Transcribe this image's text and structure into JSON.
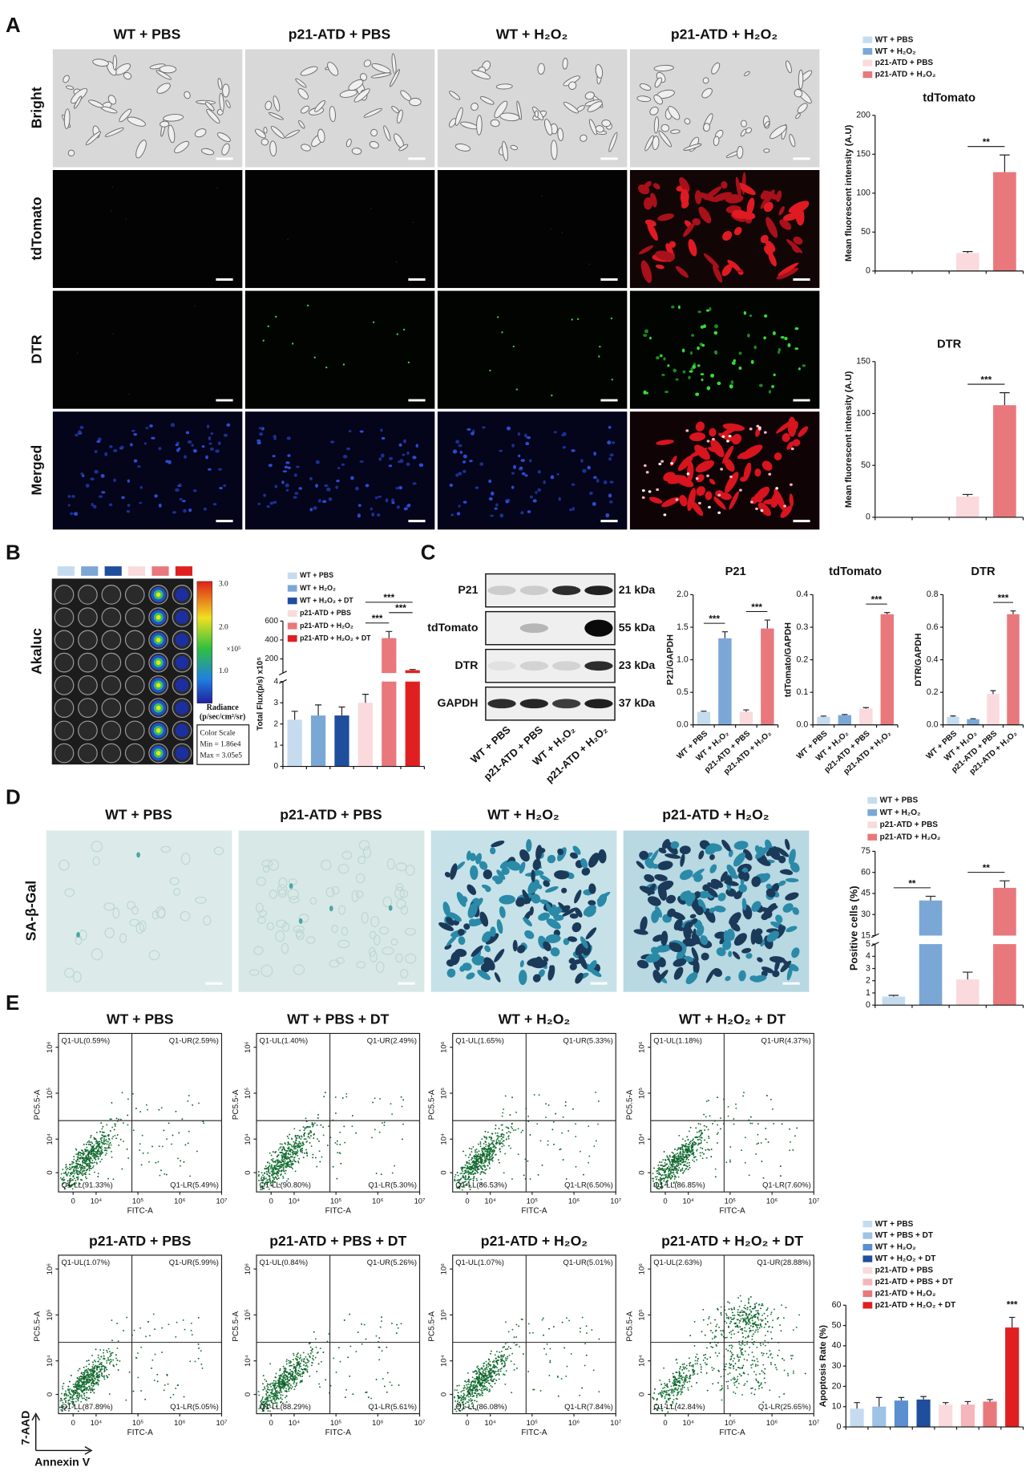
{
  "panel_labels": [
    "A",
    "B",
    "C",
    "D",
    "E"
  ],
  "panel_a": {
    "columns": [
      "WT + PBS",
      "p21-ATD + PBS",
      "WT + H₂O₂",
      "p21-ATD + H₂O₂"
    ],
    "rows": [
      "Bright",
      "tdTomato",
      "DTR",
      "Merged"
    ],
    "charts": [
      {
        "type": "bar",
        "title": "tdTomato",
        "legend": true,
        "categories": [
          "WT + PBS",
          "WT + H₂O₂",
          "p21-ATD + PBS",
          "p21-ATD + H₂O₂"
        ],
        "colors": [
          "#c5dcef",
          "#7ba7d6",
          "#fadadd",
          "#e8787c"
        ],
        "values": [
          0,
          0,
          23,
          127
        ],
        "errors": [
          0,
          0,
          2,
          22
        ],
        "ylim": [
          0,
          200
        ],
        "yticks": [
          0,
          50,
          100,
          150,
          200
        ],
        "ylabel": "Mean fluorescent intensity (A.U)",
        "brackets": [
          {
            "from": 2,
            "to": 3,
            "label": "**"
          }
        ]
      },
      {
        "type": "bar",
        "title": "DTR",
        "colors": [
          "#c5dcef",
          "#7ba7d6",
          "#fadadd",
          "#e8787c"
        ],
        "values": [
          0,
          0,
          20,
          108
        ],
        "errors": [
          0,
          0,
          2,
          12
        ],
        "ylim": [
          0,
          150
        ],
        "yticks": [
          0,
          50,
          100,
          150
        ],
        "ylabel": "Mean fluorescent intensity (A.U)",
        "brackets": [
          {
            "from": 2,
            "to": 3,
            "label": "***"
          }
        ]
      }
    ]
  },
  "panel_b": {
    "row_label": "Akaluc",
    "colorbar": {
      "ticks": [
        "3.0",
        "2.0",
        "1.0"
      ],
      "exponent": "×10⁵",
      "label": [
        "Radiance",
        "(p/sec/cm²/sr)"
      ]
    },
    "scale_box": [
      "Color Scale",
      "Min = 1.86e4",
      "Max = 3.05e5"
    ],
    "chart": {
      "type": "bar",
      "legend": true,
      "categories": [
        "WT + PBS",
        "WT + H₂O₂",
        "WT + H₂O₂ + DT",
        "p21-ATD + PBS",
        "p21-ATD + H₂O₂",
        "p21-ATD + H₂O₂ + DT"
      ],
      "colors": [
        "#c5dcef",
        "#7ba7d6",
        "#1f4e9c",
        "#fadadd",
        "#e8787c",
        "#e02020"
      ],
      "values": [
        2.2,
        2.4,
        2.4,
        3.0,
        420,
        80
      ],
      "errors": [
        0.4,
        0.5,
        0.4,
        0.4,
        70,
        8
      ],
      "ysegments": [
        [
          0,
          4
        ],
        [
          50,
          600
        ]
      ],
      "yticks": [
        0,
        1,
        2,
        3,
        4,
        200,
        400,
        600
      ],
      "ylabel": "Total Flux(p/s) x10⁵",
      "brackets": [
        {
          "from": 3,
          "to": 4,
          "label": "***"
        },
        {
          "from": 4,
          "to": 5,
          "label": "***"
        },
        {
          "from": 3,
          "to": 5,
          "label": "***"
        }
      ]
    }
  },
  "panel_c": {
    "blot": {
      "rows": [
        "P21",
        "tdTomato",
        "DTR",
        "GAPDH"
      ],
      "sizes": [
        "21 kDa",
        "55 kDa",
        "23 kDa",
        "37 kDa"
      ],
      "lanes": [
        "WT + PBS",
        "p21-ATD + PBS",
        "WT + H₂O₂",
        "p21-ATD + H₂O₂"
      ]
    },
    "charts": [
      {
        "type": "bar",
        "title": "P21",
        "categories": [
          "WT + PBS",
          "WT + H₂O₂",
          "p21-ATD + PBS",
          "p21-ATD + H₂O₂"
        ],
        "colors": [
          "#c5dcef",
          "#7ba7d6",
          "#fadadd",
          "#e8787c"
        ],
        "values": [
          0.2,
          1.33,
          0.2,
          1.48
        ],
        "errors": [
          0.01,
          0.1,
          0.03,
          0.13
        ],
        "ylim": [
          0,
          2
        ],
        "yticks": [
          {
            "value": 0,
            "label": "0.0"
          },
          0.5,
          {
            "value": 1,
            "label": "1.0"
          },
          1.5,
          {
            "value": 2,
            "label": "2.0"
          }
        ],
        "ylabel": "P21/GAPDH",
        "brackets": [
          {
            "from": 0,
            "to": 1,
            "label": "***"
          },
          {
            "from": 2,
            "to": 3,
            "label": "***"
          }
        ]
      },
      {
        "type": "bar",
        "title": "tdTomato",
        "categories": [
          "WT + PBS",
          "WT + H₂O₂",
          "p21-ATD + PBS",
          "p21-ATD + H₂O₂"
        ],
        "colors": [
          "#c5dcef",
          "#7ba7d6",
          "#fadadd",
          "#e8787c"
        ],
        "values": [
          0.025,
          0.03,
          0.05,
          0.34
        ],
        "errors": [
          0.002,
          0.002,
          0.003,
          0.005
        ],
        "ylim": [
          0,
          0.4
        ],
        "yticks": [
          {
            "value": 0,
            "label": "0.0"
          },
          0.1,
          0.2,
          0.3,
          0.4
        ],
        "ylabel": "tdTomato/GAPDH",
        "brackets": [
          {
            "from": 2,
            "to": 3,
            "label": "***"
          }
        ]
      },
      {
        "type": "bar",
        "title": "DTR",
        "categories": [
          "WT + PBS",
          "WT + H₂O₂",
          "p21-ATD + PBS",
          "p21-ATD + H₂O₂"
        ],
        "colors": [
          "#c5dcef",
          "#7ba7d6",
          "#fadadd",
          "#e8787c"
        ],
        "values": [
          0.05,
          0.035,
          0.19,
          0.68
        ],
        "errors": [
          0.005,
          0.003,
          0.02,
          0.02
        ],
        "ylim": [
          0,
          0.8
        ],
        "yticks": [
          {
            "value": 0,
            "label": "0.0"
          },
          0.2,
          0.4,
          0.6,
          0.8
        ],
        "ylabel": "DTR/GAPDH",
        "brackets": [
          {
            "from": 2,
            "to": 3,
            "label": "***"
          }
        ]
      }
    ]
  },
  "panel_d": {
    "columns": [
      "WT + PBS",
      "p21-ATD + PBS",
      "WT + H₂O₂",
      "p21-ATD + H₂O₂"
    ],
    "row_label": "SA-β-Gal",
    "chart": {
      "type": "bar",
      "legend": true,
      "categories": [
        "WT + PBS",
        "WT + H₂O₂",
        "p21-ATD + PBS",
        "p21-ATD + H₂O₂"
      ],
      "colors": [
        "#c5dcef",
        "#7ba7d6",
        "#fadadd",
        "#e8787c"
      ],
      "values": [
        0.7,
        40,
        2.1,
        49
      ],
      "errors": [
        0.1,
        3,
        0.6,
        5
      ],
      "ysegments": [
        [
          0,
          5
        ],
        [
          15,
          75
        ]
      ],
      "yticks": [
        0,
        1,
        2,
        3,
        4,
        5,
        15,
        30,
        45,
        60,
        75
      ],
      "ylabel": "Positive cells (%)",
      "brackets": [
        {
          "from": 0,
          "to": 1,
          "label": "**"
        },
        {
          "from": 2,
          "to": 3,
          "label": "**"
        }
      ]
    }
  },
  "panel_e": {
    "plots": [
      {
        "title": "WT + PBS",
        "quadrants": [
          "Q1-UL(0.59%)",
          "Q1-UR(2.59%)",
          "Q1-LL(91.33%)",
          "Q1-LR(5.49%)"
        ]
      },
      {
        "title": "WT + PBS + DT",
        "quadrants": [
          "Q1-UL(1.40%)",
          "Q1-UR(2.49%)",
          "Q1-LL(90.80%)",
          "Q1-LR(5.30%)"
        ]
      },
      {
        "title": "WT + H₂O₂",
        "quadrants": [
          "Q1-UL(1.65%)",
          "Q1-UR(5.33%)",
          "Q1-LL(86.53%)",
          "Q1-LR(6.50%)"
        ]
      },
      {
        "title": "WT + H₂O₂ + DT",
        "quadrants": [
          "Q1-UL(1.18%)",
          "Q1-UR(4.37%)",
          "Q1-LL(86.85%)",
          "Q1-LR(7.60%)"
        ]
      },
      {
        "title": "p21-ATD + PBS",
        "quadrants": [
          "Q1-UL(1.07%)",
          "Q1-UR(5.99%)",
          "Q1-LL(87.89%)",
          "Q1-LR(5.05%)"
        ]
      },
      {
        "title": "p21-ATD + PBS + DT",
        "quadrants": [
          "Q1-UL(0.84%)",
          "Q1-UR(5.26%)",
          "Q1-LL(88.29%)",
          "Q1-LR(5.61%)"
        ]
      },
      {
        "title": "p21-ATD + H₂O₂",
        "quadrants": [
          "Q1-UL(1.07%)",
          "Q1-UR(5.01%)",
          "Q1-LL(86.08%)",
          "Q1-LR(7.84%)"
        ]
      },
      {
        "title": "p21-ATD + H₂O₂ + DT",
        "quadrants": [
          "Q1-UL(2.63%)",
          "Q1-UR(28.88%)",
          "Q1-LL(42.84%)",
          "Q1-LR(25.65%)"
        ]
      }
    ],
    "axes": {
      "xlabel": "FITC-A",
      "ylabel": "PC5.5-A",
      "xscale": "log",
      "yscale": "log",
      "xlim": [
        0,
        10000000
      ],
      "ylim": [
        0,
        2000000
      ],
      "xticks": [
        0,
        {
          "value": 10000,
          "label": "10⁴"
        },
        {
          "value": 100000,
          "label": "10⁵"
        },
        {
          "value": 1000000,
          "label": "10⁶"
        },
        {
          "value": 10000000,
          "label": "10⁷"
        }
      ],
      "yticks": [
        0,
        {
          "value": 10000,
          "label": "10⁴"
        },
        {
          "value": 100000,
          "label": "10⁵"
        },
        {
          "value": 1000000,
          "label": "10⁶"
        }
      ]
    },
    "outer_labels": [
      "7-AAD",
      "Annexin V"
    ],
    "chart": {
      "type": "bar",
      "legend": true,
      "categories": [
        "WT + PBS",
        "WT + PBS + DT",
        "WT + H₂O₂",
        "WT + H₂O₂ + DT",
        "p21-ATD + PBS",
        "p21-ATD + PBS + DT",
        "p21-ATD + H₂O₂",
        "p21-ATD + H₂O₂ + DT"
      ],
      "colors": [
        "#c5dcef",
        "#9dc3e6",
        "#5b8fd0",
        "#1f4e9c",
        "#fadadd",
        "#f4b6b9",
        "#e8787c",
        "#e02020"
      ],
      "values": [
        9,
        10,
        13,
        13.5,
        11,
        11,
        12.5,
        49
      ],
      "errors": [
        3,
        4.5,
        1.5,
        1.5,
        1,
        1.5,
        1,
        5
      ],
      "ylim": [
        0,
        60
      ],
      "yticks": [
        0,
        10,
        20,
        30,
        40,
        50,
        60
      ],
      "ylabel": "Apoptosis Rate (%)",
      "brackets": [
        {
          "from": 7,
          "to": 7,
          "label": "***"
        }
      ]
    }
  }
}
